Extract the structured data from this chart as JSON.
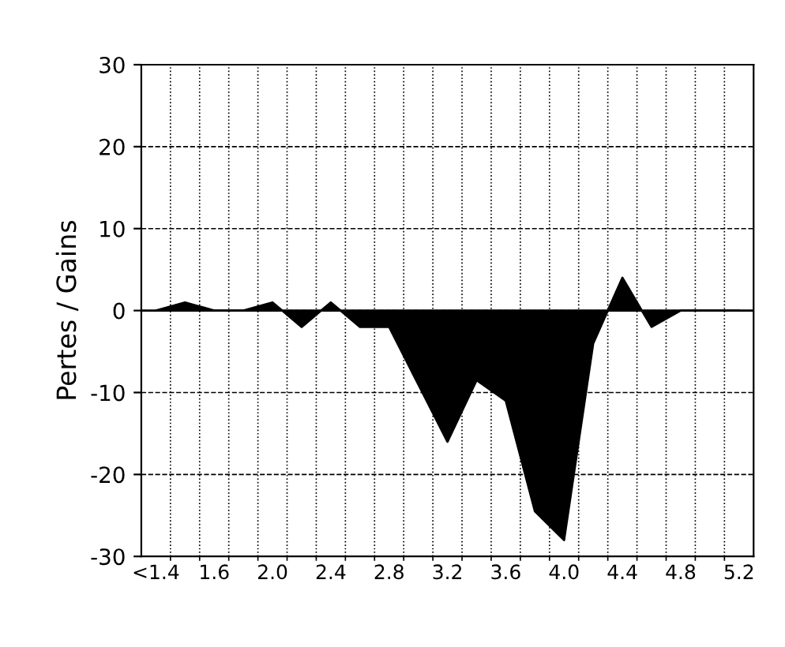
{
  "chart_data": {
    "type": "area",
    "ylabel": "Pertes / Gains",
    "categories": [
      "<1.4",
      null,
      "1.6",
      null,
      "2.0",
      null,
      "2.4",
      null,
      "2.8",
      null,
      "3.2",
      null,
      "3.6",
      null,
      "4.0",
      null,
      "4.4",
      null,
      "4.8",
      null,
      "5.2"
    ],
    "series": [
      {
        "color": "#000000",
        "values": [
          0,
          1,
          0,
          0,
          1,
          -2,
          1,
          -2,
          -2,
          -9,
          -16,
          -8.5,
          -11,
          -24.5,
          -28,
          -4,
          4,
          -2,
          0,
          0,
          0
        ]
      }
    ],
    "ylim": [
      -30,
      30
    ],
    "yticks": [
      -30,
      -20,
      -10,
      0,
      10,
      20,
      30
    ],
    "grid": true
  }
}
